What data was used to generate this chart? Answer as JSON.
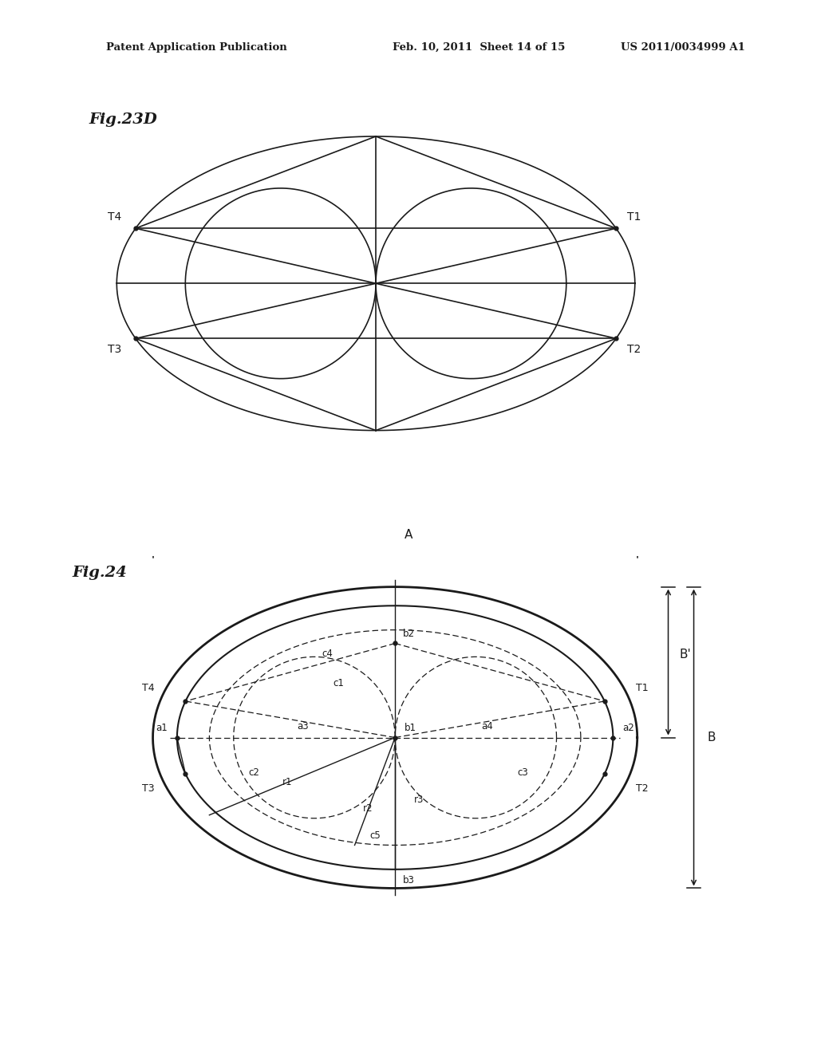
{
  "bg_color": "#ffffff",
  "line_color": "#1a1a1a",
  "header_text": "Patent Application Publication    Feb. 10, 2011  Sheet 14 of 15    US 2011/0034999 A1",
  "fig23d_label": "Fig.23D",
  "fig24_label": "Fig.24"
}
